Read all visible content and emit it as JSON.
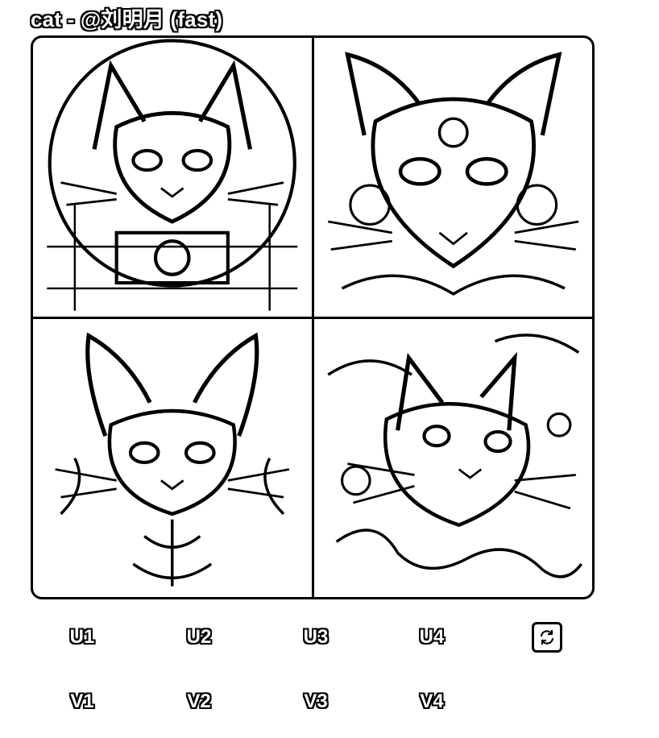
{
  "header": {
    "title": "cat - @刘明月 (fast)"
  },
  "upscale_buttons": [
    "U1",
    "U2",
    "U3",
    "U4"
  ],
  "variation_buttons": [
    "V1",
    "V2",
    "V3",
    "V4"
  ],
  "icons": {
    "reroll": "refresh-icon"
  }
}
